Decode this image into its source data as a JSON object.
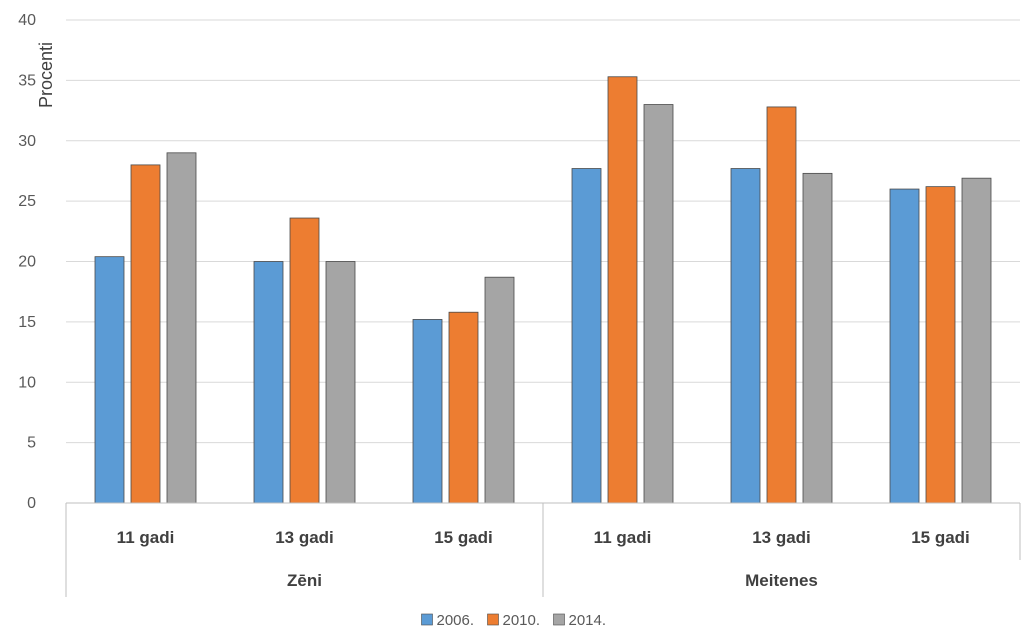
{
  "chart_data": {
    "type": "bar",
    "ylabel": "Procenti",
    "ylim": [
      0,
      40
    ],
    "yticks": [
      0,
      5,
      10,
      15,
      20,
      25,
      30,
      35,
      40
    ],
    "grid": true,
    "legend_position": "bottom",
    "groups": [
      {
        "label": "Zēni",
        "categories": [
          "11 gadi",
          "13 gadi",
          "15 gadi"
        ]
      },
      {
        "label": "Meitenes",
        "categories": [
          "11 gadi",
          "13 gadi",
          "15 gadi"
        ]
      }
    ],
    "series": [
      {
        "name": "2006.",
        "color": "#5b9bd5",
        "values": [
          20.4,
          20.0,
          15.2,
          27.7,
          27.7,
          26.0
        ]
      },
      {
        "name": "2010.",
        "color": "#ed7d31",
        "values": [
          28.0,
          23.6,
          15.8,
          35.3,
          32.8,
          26.2
        ]
      },
      {
        "name": "2014.",
        "color": "#a5a5a5",
        "values": [
          29.0,
          20.0,
          18.7,
          33.0,
          27.3,
          26.9
        ]
      }
    ]
  }
}
